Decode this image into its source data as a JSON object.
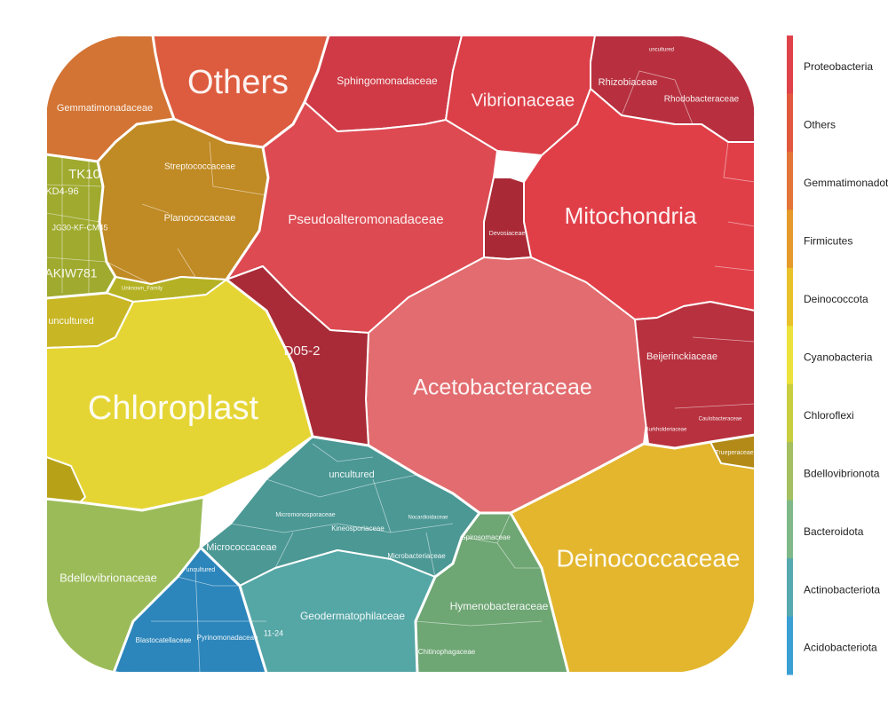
{
  "chart_data": {
    "type": "voronoi-treemap",
    "title": "",
    "legend": {
      "placement": "right",
      "entries": [
        {
          "name": "Proteobacteria",
          "color": "#e0424a"
        },
        {
          "name": "Others",
          "color": "#e2583f"
        },
        {
          "name": "Gemmatimonadota",
          "color": "#e27537"
        },
        {
          "name": "Firmicutes",
          "color": "#e69a2b"
        },
        {
          "name": "Deinococcota",
          "color": "#e9c22b"
        },
        {
          "name": "Cyanobacteria",
          "color": "#ece23b"
        },
        {
          "name": "Chloroflexi",
          "color": "#c9ce3f"
        },
        {
          "name": "Bdellovibrionota",
          "color": "#a4c060"
        },
        {
          "name": "Bacteroidota",
          "color": "#7fb98a"
        },
        {
          "name": "Actinobacteriota",
          "color": "#57aab0"
        },
        {
          "name": "Acidobacteriota",
          "color": "#3aa0d4"
        }
      ]
    },
    "phyla": [
      {
        "name": "Others",
        "color": "#dd5b3e",
        "families": [
          "Others"
        ]
      },
      {
        "name": "Gemmatimonadota",
        "color": "#d27231",
        "families": [
          "Gemmatimonadaceae"
        ]
      },
      {
        "name": "Firmicutes",
        "color": "#c08424",
        "families": [
          "Streptococcaceae",
          "Planococcaceae",
          "Unknown_Family"
        ]
      },
      {
        "name": "Chloroflexi",
        "color": "#a0a52c",
        "families": [
          "TK10",
          "KD4-96",
          "JG30-KF-CM45",
          "AKIW781"
        ]
      },
      {
        "name": "Cyanobacteria",
        "color": "#e4d534",
        "families": [
          "Chloroplast",
          "uncultured"
        ]
      },
      {
        "name": "Proteobacteria",
        "color": "#d9404a",
        "families": [
          "Sphingomonadaceae",
          "Vibrionaceae",
          "Rhizobiaceae",
          "Rhodobacteraceae",
          "uncultured",
          "Pseudoalteromonadaceae",
          "Mitochondria",
          "Devosiaceae",
          "Acetobacteraceae",
          "D05-2",
          "Beijerinckiaceae",
          "Caulobacteraceae",
          "Burkholderiaceae"
        ]
      },
      {
        "name": "Actinobacteriota",
        "color": "#4d9c9a",
        "families": [
          "uncultured",
          "Micrococcaceae",
          "Kineosporiaceae",
          "Microbacteriaceae",
          "Geodermatophilaceae",
          "Nocardioidaceae",
          "Micromonosporaceae"
        ]
      },
      {
        "name": "Bdellovibrionota",
        "color": "#9cbb5a",
        "families": [
          "Bdellovibrionaceae"
        ]
      },
      {
        "name": "Acidobacteriota",
        "color": "#2f86ba",
        "families": [
          "Blastocatellaceae",
          "Pyrinomonadaceae",
          "uncultured",
          "11-24"
        ]
      },
      {
        "name": "Bacteroidota",
        "color": "#6fa271",
        "families": [
          "Hymenobacteraceae",
          "Chitinophagaceae",
          "Spirosomaceae"
        ]
      },
      {
        "name": "Deinococcota",
        "color": "#e3b62f",
        "families": [
          "Deinococcaceae",
          "Trueperaceae"
        ]
      }
    ],
    "cell_labels": {
      "others": "Others",
      "gemmatimonadaceae": "Gemmatimonadaceae",
      "streptococcaceae": "Streptococcaceae",
      "planococcaceae": "Planococcaceae",
      "unknown_family": "Unknown_Family",
      "tk10": "TK10",
      "kd4_96": "KD4-96",
      "jg30": "JG30-KF-CM45",
      "akiw781": "AKIW781",
      "sphingomonadaceae": "Sphingomonadaceae",
      "vibrionaceae": "Vibrionaceae",
      "rhizobiaceae": "Rhizobiaceae",
      "rhodobacteraceae": "Rhodobacteraceae",
      "uncultured_top": "uncultured",
      "pseudoalteromonadaceae": "Pseudoalteromonadaceae",
      "mitochondria": "Mitochondria",
      "devosiaceae": "Devosiaceae",
      "acetobacteraceae": "Acetobacteraceae",
      "d05_2": "D05-2",
      "beijerinckiaceae": "Beijerinckiaceae",
      "caulobacteraceae": "Caulobacteraceae",
      "burkholderiaceae": "Burkholderiaceae",
      "uncultured_cyano": "uncultured",
      "chloroplast": "Chloroplast",
      "uncultured_actino": "uncultured",
      "micrococcaceae": "Micrococcaceae",
      "kineosporiaceae": "Kineosporiaceae",
      "microbacteriaceae": "Microbacteriaceae",
      "micromonosporaceae": "Micromonosporaceae",
      "nocardioidaceae": "Nocardioidaceae",
      "geodermatophilaceae": "Geodermatophilaceae",
      "bdellovibrionaceae": "Bdellovibrionaceae",
      "uncultured_acido": "uncultured",
      "blastocatellaceae": "Blastocatellaceae",
      "pyrinomonadaceae": "Pyrinomonadaceae",
      "acido_11_24": "11-24",
      "hymenobacteraceae": "Hymenobacteraceae",
      "chitinophagaceae": "Chitinophagaceae",
      "spirosomaceae": "Spirosomaceae",
      "deinococcaceae": "Deinococcaceae",
      "trueperaceae": "Trueperaceae"
    }
  }
}
